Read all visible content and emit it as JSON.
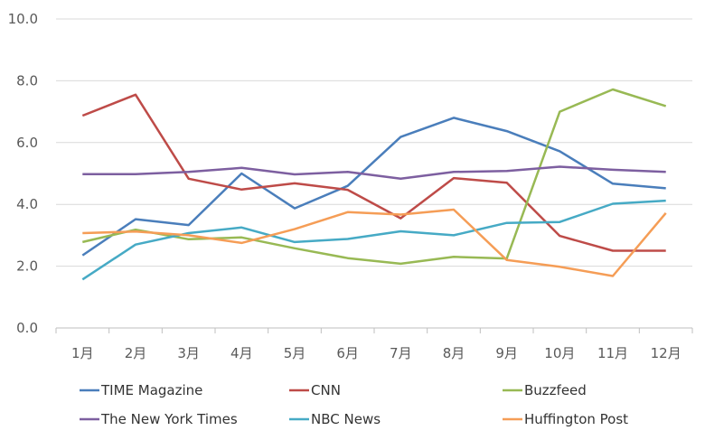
{
  "chart_data": {
    "type": "line",
    "categories": [
      "1月",
      "2月",
      "3月",
      "4月",
      "5月",
      "6月",
      "7月",
      "8月",
      "9月",
      "10月",
      "11月",
      "12月"
    ],
    "ylim": [
      0,
      10
    ],
    "yticks": [
      "0.0",
      "2.0",
      "4.0",
      "6.0",
      "8.0",
      "10.0"
    ],
    "ytick_values": [
      0,
      2,
      4,
      6,
      8,
      10
    ],
    "grid": "horizontal",
    "legend_position": "bottom",
    "series": [
      {
        "name": "TIME Magazine",
        "color": "#4a7ebb",
        "values": [
          2.35,
          3.52,
          3.33,
          5.0,
          3.87,
          4.6,
          6.18,
          6.8,
          6.37,
          5.72,
          4.67,
          4.52
        ]
      },
      {
        "name": "CNN",
        "color": "#be4b48",
        "values": [
          6.87,
          7.55,
          4.83,
          4.48,
          4.68,
          4.47,
          3.55,
          4.85,
          4.7,
          2.98,
          2.5,
          2.5
        ]
      },
      {
        "name": "Buzzfeed",
        "color": "#98b954",
        "values": [
          2.78,
          3.18,
          2.87,
          2.93,
          2.58,
          2.26,
          2.08,
          2.3,
          2.25,
          7.0,
          7.72,
          7.18
        ]
      },
      {
        "name": "The New York Times",
        "color": "#7d5fa0",
        "values": [
          4.98,
          4.98,
          5.05,
          5.18,
          4.97,
          5.05,
          4.83,
          5.05,
          5.08,
          5.22,
          5.12,
          5.05
        ]
      },
      {
        "name": "NBC News",
        "color": "#46aac5",
        "values": [
          1.57,
          2.7,
          3.07,
          3.25,
          2.78,
          2.88,
          3.13,
          3.0,
          3.4,
          3.43,
          4.02,
          4.12
        ]
      },
      {
        "name": "Huffington Post",
        "color": "#f59d56",
        "values": [
          3.07,
          3.12,
          3.0,
          2.75,
          3.2,
          3.75,
          3.67,
          3.83,
          2.2,
          1.98,
          1.68,
          3.72
        ]
      }
    ]
  }
}
